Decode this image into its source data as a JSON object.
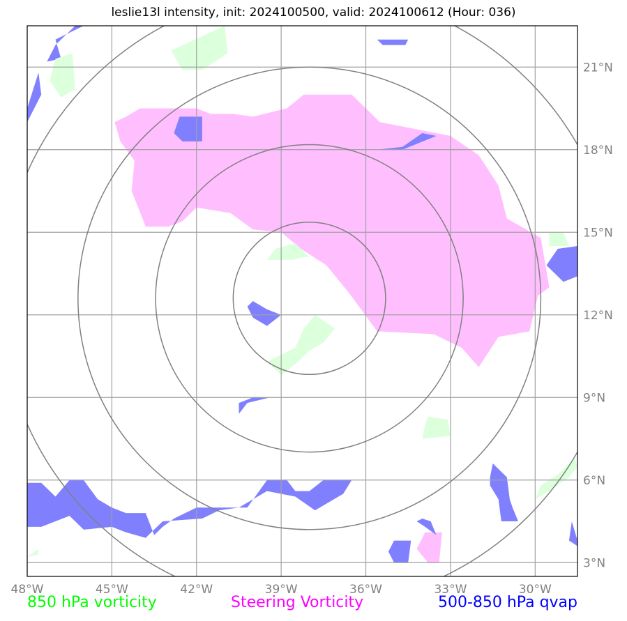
{
  "title": "leslie13l intensity, init: 2024100500, valid: 2024100612 (Hour: 036)",
  "map": {
    "lon_range": [
      -48,
      -28.5
    ],
    "lat_range": [
      2.5,
      22.5
    ],
    "lon_ticks": [
      {
        "lon": -48,
        "label": "48°W"
      },
      {
        "lon": -45,
        "label": "45°W"
      },
      {
        "lon": -42,
        "label": "42°W"
      },
      {
        "lon": -39,
        "label": "39°W"
      },
      {
        "lon": -36,
        "label": "36°W"
      },
      {
        "lon": -33,
        "label": "33°W"
      },
      {
        "lon": -30,
        "label": "30°W"
      }
    ],
    "lat_ticks": [
      {
        "lat": 21,
        "label": "21°N"
      },
      {
        "lat": 18,
        "label": "18°N"
      },
      {
        "lat": 15,
        "label": "15°N"
      },
      {
        "lat": 12,
        "label": "12°N"
      },
      {
        "lat": 9,
        "label": "9°N"
      },
      {
        "lat": 6,
        "label": "6°N"
      },
      {
        "lat": 3,
        "label": "3°N"
      }
    ],
    "storm_center": {
      "lon": -38.0,
      "lat": 12.6
    },
    "range_rings_deg": [
      2.7,
      5.45,
      8.2,
      10.95
    ],
    "grid_color": "#a0a0a0",
    "ring_color": "#808080"
  },
  "layers": [
    {
      "name": "Steering Vorticity",
      "color": "#ff00ff",
      "fill": "#ffbfff",
      "polygons": [
        [
          [
            -44.5,
            19.2
          ],
          [
            -44.0,
            19.5
          ],
          [
            -42.0,
            19.5
          ],
          [
            -41.5,
            19.3
          ],
          [
            -40.7,
            19.3
          ],
          [
            -40.0,
            19.2
          ],
          [
            -38.8,
            19.5
          ],
          [
            -38.2,
            20.0
          ],
          [
            -36.5,
            20.0
          ],
          [
            -35.5,
            19.0
          ],
          [
            -34.5,
            18.8
          ],
          [
            -33.0,
            18.5
          ],
          [
            -32.0,
            17.8
          ],
          [
            -31.3,
            16.7
          ],
          [
            -31.0,
            15.5
          ],
          [
            -29.8,
            14.8
          ],
          [
            -29.5,
            13.0
          ],
          [
            -29.9,
            12.7
          ],
          [
            -30.2,
            11.4
          ],
          [
            -31.3,
            11.2
          ],
          [
            -32.0,
            10.1
          ],
          [
            -32.6,
            10.8
          ],
          [
            -33.6,
            11.3
          ],
          [
            -35.6,
            11.4
          ],
          [
            -36.6,
            12.8
          ],
          [
            -37.4,
            13.8
          ],
          [
            -38.3,
            14.4
          ],
          [
            -39.0,
            15.0
          ],
          [
            -40.0,
            15.1
          ],
          [
            -40.8,
            15.7
          ],
          [
            -42.0,
            15.9
          ],
          [
            -42.5,
            15.4
          ],
          [
            -43.0,
            15.2
          ],
          [
            -43.8,
            15.2
          ],
          [
            -44.3,
            16.5
          ],
          [
            -44.2,
            17.6
          ],
          [
            -44.7,
            18.3
          ],
          [
            -44.9,
            19.0
          ]
        ],
        [
          [
            -33.9,
            4.1
          ],
          [
            -33.3,
            4.1
          ],
          [
            -33.4,
            3.0
          ],
          [
            -33.8,
            3.0
          ],
          [
            -34.2,
            3.5
          ]
        ]
      ]
    },
    {
      "name": "500-850 hPa qvap",
      "color": "#0000ff",
      "fill": "#8080ff",
      "polygons": [
        [
          [
            -48.0,
            5.9
          ],
          [
            -47.5,
            5.9
          ],
          [
            -47.0,
            5.4
          ],
          [
            -46.5,
            6.0
          ],
          [
            -46.0,
            6.0
          ],
          [
            -45.5,
            5.3
          ],
          [
            -45.0,
            5.0
          ],
          [
            -44.5,
            4.8
          ],
          [
            -43.8,
            4.8
          ],
          [
            -43.5,
            4.0
          ],
          [
            -43.2,
            4.3
          ],
          [
            -42.8,
            4.6
          ],
          [
            -42.0,
            5.0
          ],
          [
            -40.8,
            5.0
          ],
          [
            -40.2,
            5.0
          ],
          [
            -39.5,
            6.0
          ],
          [
            -38.8,
            6.0
          ],
          [
            -38.5,
            5.6
          ],
          [
            -38.0,
            5.6
          ],
          [
            -37.5,
            6.0
          ],
          [
            -36.5,
            6.0
          ],
          [
            -36.8,
            5.5
          ],
          [
            -37.8,
            4.9
          ],
          [
            -38.5,
            5.4
          ],
          [
            -39.5,
            5.6
          ],
          [
            -40.5,
            5.0
          ],
          [
            -41.2,
            4.9
          ],
          [
            -41.8,
            4.6
          ],
          [
            -43.2,
            4.5
          ],
          [
            -43.8,
            3.9
          ],
          [
            -44.5,
            4.1
          ],
          [
            -45.0,
            4.3
          ],
          [
            -46.0,
            4.2
          ],
          [
            -46.5,
            4.7
          ],
          [
            -47.5,
            4.3
          ],
          [
            -48.0,
            4.3
          ]
        ],
        [
          [
            -48.0,
            19.0
          ],
          [
            -47.5,
            20.0
          ],
          [
            -47.6,
            20.8
          ],
          [
            -48.0,
            19.5
          ]
        ],
        [
          [
            -47.0,
            22.0
          ],
          [
            -46.0,
            22.5
          ],
          [
            -46.3,
            22.5
          ],
          [
            -47.0,
            21.8
          ],
          [
            -47.3,
            21.2
          ],
          [
            -46.8,
            21.3
          ]
        ],
        [
          [
            -42.6,
            19.2
          ],
          [
            -41.8,
            19.2
          ],
          [
            -41.8,
            18.3
          ],
          [
            -42.5,
            18.3
          ],
          [
            -42.8,
            18.6
          ]
        ],
        [
          [
            -34.7,
            18.0
          ],
          [
            -35.5,
            18.0
          ],
          [
            -35.6,
            18.0
          ],
          [
            -34.7,
            18.1
          ],
          [
            -34.0,
            18.6
          ],
          [
            -33.5,
            18.5
          ]
        ],
        [
          [
            -40.0,
            12.5
          ],
          [
            -39.5,
            12.2
          ],
          [
            -39.0,
            12.0
          ],
          [
            -39.5,
            11.6
          ],
          [
            -40.0,
            11.9
          ],
          [
            -40.2,
            12.3
          ]
        ],
        [
          [
            -40.5,
            8.8
          ],
          [
            -40.0,
            9.0
          ],
          [
            -39.4,
            9.0
          ],
          [
            -40.2,
            8.8
          ],
          [
            -40.5,
            8.4
          ]
        ],
        [
          [
            -31.5,
            6.6
          ],
          [
            -31.0,
            6.1
          ],
          [
            -30.9,
            5.3
          ],
          [
            -30.8,
            5.0
          ],
          [
            -30.6,
            4.5
          ],
          [
            -31.2,
            4.5
          ],
          [
            -31.3,
            5.3
          ],
          [
            -31.6,
            5.8
          ],
          [
            -31.6,
            6.1
          ]
        ],
        [
          [
            -35.0,
            3.8
          ],
          [
            -34.4,
            3.8
          ],
          [
            -34.5,
            3.0
          ],
          [
            -35.0,
            3.0
          ],
          [
            -35.2,
            3.4
          ]
        ],
        [
          [
            -34.0,
            4.6
          ],
          [
            -33.7,
            4.5
          ],
          [
            -33.5,
            4.0
          ],
          [
            -33.9,
            4.3
          ],
          [
            -34.2,
            4.5
          ]
        ],
        [
          [
            -29.2,
            14.4
          ],
          [
            -28.5,
            14.5
          ],
          [
            -28.5,
            13.4
          ],
          [
            -29.0,
            13.2
          ],
          [
            -29.6,
            13.8
          ]
        ],
        [
          [
            -28.7,
            4.5
          ],
          [
            -28.5,
            3.8
          ],
          [
            -28.5,
            3.6
          ],
          [
            -28.8,
            3.8
          ]
        ],
        [
          [
            -35.6,
            22.0
          ],
          [
            -34.5,
            22.0
          ],
          [
            -34.6,
            21.8
          ],
          [
            -35.4,
            21.8
          ]
        ]
      ]
    },
    {
      "name": "850 hPa vorticity",
      "color": "#00ff00",
      "fill": "#dcffdc",
      "polygons": [
        [
          [
            -47.0,
            21.3
          ],
          [
            -46.4,
            21.5
          ],
          [
            -46.3,
            20.2
          ],
          [
            -46.8,
            19.9
          ],
          [
            -47.2,
            20.5
          ]
        ],
        [
          [
            -42.9,
            21.6
          ],
          [
            -41.0,
            22.5
          ],
          [
            -40.9,
            21.5
          ],
          [
            -41.8,
            20.9
          ],
          [
            -42.5,
            20.9
          ]
        ],
        [
          [
            -38.5,
            14.6
          ],
          [
            -38.0,
            14.1
          ],
          [
            -38.2,
            14.1
          ],
          [
            -38.6,
            14.0
          ],
          [
            -39.5,
            14.0
          ],
          [
            -39.2,
            14.4
          ]
        ],
        [
          [
            -37.8,
            12.0
          ],
          [
            -37.1,
            11.5
          ],
          [
            -37.5,
            11.0
          ],
          [
            -38.0,
            10.7
          ],
          [
            -38.4,
            10.3
          ],
          [
            -39.0,
            9.8
          ],
          [
            -39.5,
            10.3
          ],
          [
            -38.5,
            10.8
          ],
          [
            -38.2,
            11.5
          ]
        ],
        [
          [
            -33.8,
            8.3
          ],
          [
            -33.1,
            8.2
          ],
          [
            -33.0,
            7.6
          ],
          [
            -34.0,
            7.5
          ],
          [
            -33.9,
            8.0
          ]
        ],
        [
          [
            -29.5,
            15.0
          ],
          [
            -29.0,
            15.0
          ],
          [
            -28.8,
            14.5
          ],
          [
            -29.5,
            14.5
          ]
        ],
        [
          [
            -28.6,
            6.8
          ],
          [
            -28.5,
            6.5
          ],
          [
            -28.8,
            6.1
          ],
          [
            -29.5,
            5.6
          ],
          [
            -30.0,
            5.3
          ],
          [
            -29.8,
            5.8
          ],
          [
            -29.2,
            6.2
          ]
        ],
        [
          [
            -48.0,
            3.2
          ],
          [
            -47.6,
            3.5
          ],
          [
            -47.6,
            3.3
          ],
          [
            -48.0,
            3.2
          ]
        ]
      ]
    }
  ],
  "legend": {
    "left": {
      "label": "850 hPa vorticity",
      "color": "#00ff00"
    },
    "center": {
      "label": "Steering Vorticity",
      "color": "#ff00ff"
    },
    "right": {
      "label": "500-850 hPa qvap",
      "color": "#0000ff"
    }
  }
}
